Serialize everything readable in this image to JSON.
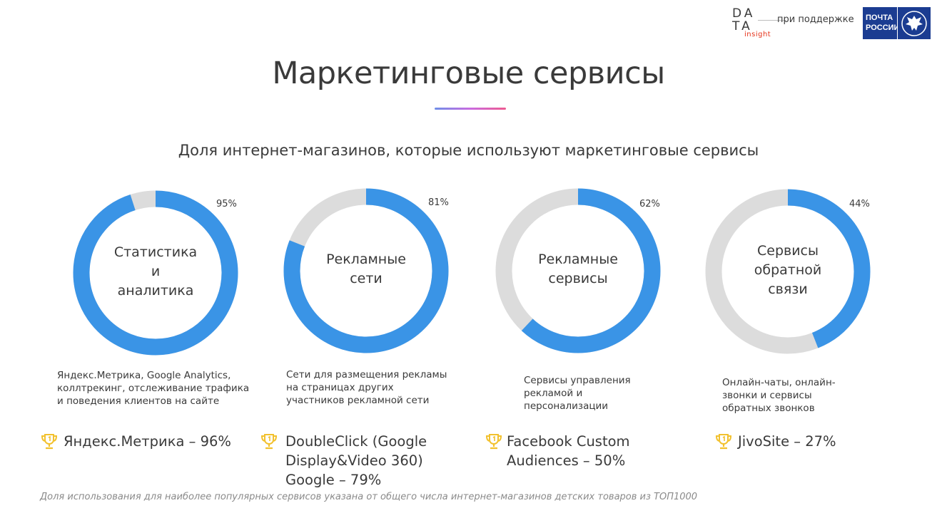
{
  "header": {
    "logo_line1": "DA",
    "logo_line2": "TA",
    "logo_insight": "insight",
    "support_text": "при поддержке",
    "partner_line1": "ПОЧТА",
    "partner_line2": "РОССИИ"
  },
  "title": "Маркетинговые сервисы",
  "chart_data": {
    "type": "pie",
    "variant": "donut",
    "title": "Доля интернет-магазинов, которые используют маркетинговые сервисы",
    "unit": "%",
    "colors": {
      "value": "#3a94e6",
      "remainder": "#dcdcdc"
    },
    "series": [
      {
        "label_lines": [
          "Статистика",
          "и",
          "аналитика"
        ],
        "value": 95,
        "value_label": "95%",
        "description": [
          "Яндекс.Метрика, Google Analytics,",
          "коллтрекинг, отслеживание трафика",
          "и поведения клиентов на сайте"
        ],
        "top_service": [
          "Яндекс.Метрика – 96%"
        ]
      },
      {
        "label_lines": [
          "Рекламные",
          "сети"
        ],
        "value": 81,
        "value_label": "81%",
        "description": [
          "Сети для размещения рекламы",
          "на страницах других",
          "участников рекламной сети"
        ],
        "top_service": [
          "DoubleClick (Google",
          "Display&Video 360)",
          "Google  – 79%"
        ]
      },
      {
        "label_lines": [
          "Рекламные",
          "сервисы"
        ],
        "value": 62,
        "value_label": "62%",
        "description": [
          "Сервисы управления",
          "рекламой и",
          "персонализации"
        ],
        "top_service": [
          "Facebook Custom",
          "Audiences – 50%"
        ]
      },
      {
        "label_lines": [
          "Сервисы",
          "обратной",
          "связи"
        ],
        "value": 44,
        "value_label": "44%",
        "description": [
          "Онлайн-чаты, онлайн-",
          "звонки и сервисы",
          "обратных звонков"
        ],
        "top_service": [
          "JivoSite – 27%"
        ]
      }
    ]
  },
  "footnote": "Доля использования для наиболее популярных сервисов указана от общего числа интернет-магазинов детских товаров из ТОП1000",
  "icons": {
    "trophy": "trophy-icon",
    "trophy_color": "#f2c12e"
  }
}
